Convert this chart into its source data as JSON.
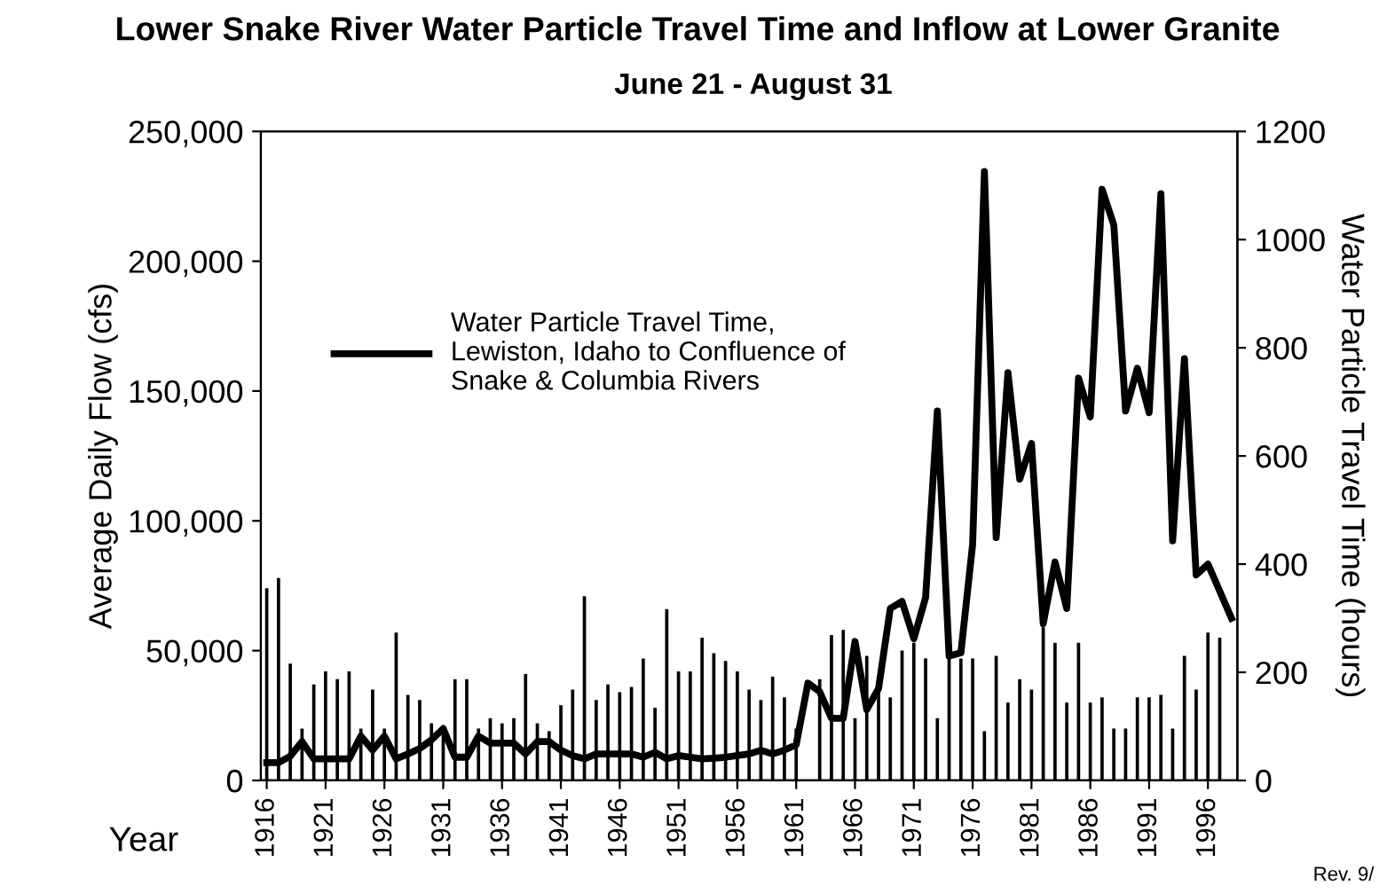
{
  "chart_data": {
    "type": "bar",
    "title": "Lower Snake River Water Particle Travel Time and Inflow at Lower Granite",
    "subtitle": "June 21 - August 31",
    "xlabel": "Year",
    "ylabel": "Average Daily Flow (cfs)",
    "y2label": "Water Particle Travel Time (hours)",
    "x": [
      1916,
      1917,
      1918,
      1919,
      1920,
      1921,
      1922,
      1923,
      1924,
      1925,
      1926,
      1927,
      1928,
      1929,
      1930,
      1931,
      1932,
      1933,
      1934,
      1935,
      1936,
      1937,
      1938,
      1939,
      1940,
      1941,
      1942,
      1943,
      1944,
      1945,
      1946,
      1947,
      1948,
      1949,
      1950,
      1951,
      1952,
      1953,
      1954,
      1955,
      1956,
      1957,
      1958,
      1959,
      1960,
      1961,
      1962,
      1963,
      1964,
      1965,
      1966,
      1967,
      1968,
      1969,
      1970,
      1971,
      1972,
      1973,
      1974,
      1975,
      1976,
      1977,
      1978,
      1979,
      1980,
      1981,
      1982,
      1983,
      1984,
      1985,
      1986,
      1987,
      1988,
      1989,
      1990,
      1991,
      1992,
      1993,
      1994,
      1995,
      1996,
      1997,
      1998
    ],
    "series": [
      {
        "color": "#000000",
        "values": [
          74000,
          78000,
          45000,
          20000,
          37000,
          42000,
          39000,
          42000,
          20000,
          35000,
          20000,
          57000,
          33000,
          31000,
          22000,
          20000,
          39000,
          39000,
          20000,
          24000,
          22000,
          24000,
          41000,
          22000,
          19000,
          29000,
          35000,
          71000,
          31000,
          37000,
          34000,
          36000,
          47000,
          28000,
          66000,
          42000,
          42000,
          55000,
          49000,
          46000,
          42000,
          35000,
          31000,
          40000,
          32000,
          20000,
          null,
          39000,
          56000,
          58000,
          24000,
          48000,
          35000,
          32000,
          50000,
          53000,
          47000,
          24000,
          47000,
          47000,
          47000,
          19000,
          48000,
          30000,
          39000,
          35000,
          59000,
          53000,
          30000,
          53000,
          30000,
          32000,
          20000,
          20000,
          32000,
          32000,
          33000,
          20000,
          48000,
          35000,
          57000,
          55000,
          null
        ]
      },
      {
        "type": "line",
        "axis": "y2",
        "name": "Water Particle Travel Time,\nLewiston, Idaho to Confluence of\nSnake & Columbia Rivers",
        "color": "#000000",
        "values": [
          33,
          33,
          45,
          72,
          40,
          40,
          40,
          40,
          82,
          56,
          82,
          40,
          49,
          59,
          75,
          96,
          43,
          43,
          82,
          69,
          69,
          69,
          49,
          72,
          72,
          56,
          46,
          40,
          49,
          49,
          49,
          49,
          43,
          52,
          40,
          46,
          43,
          40,
          41,
          43,
          46,
          49,
          56,
          49,
          56,
          66,
          180,
          164,
          115,
          115,
          257,
          131,
          170,
          318,
          331,
          262,
          338,
          683,
          230,
          236,
          437,
          1126,
          449,
          754,
          557,
          623,
          290,
          404,
          318,
          744,
          672,
          1093,
          1027,
          683,
          762,
          680,
          1085,
          443,
          780,
          380,
          400,
          350,
          300
        ]
      }
    ],
    "xlim": [
      1915.5,
      1998.5
    ],
    "xticks": [
      1916,
      1921,
      1926,
      1931,
      1936,
      1941,
      1946,
      1951,
      1956,
      1961,
      1966,
      1971,
      1976,
      1981,
      1986,
      1991,
      1996
    ],
    "ylim": [
      0,
      250000
    ],
    "yticks": [
      0,
      {
        "value": 50000,
        "label": "50,000"
      },
      {
        "value": 100000,
        "label": "100,000"
      },
      {
        "value": 150000,
        "label": "150,000"
      },
      {
        "value": 200000,
        "label": "200,000"
      },
      {
        "value": 250000,
        "label": "250,000"
      }
    ],
    "y2lim": [
      0,
      1200
    ],
    "y2ticks": [
      0,
      200,
      400,
      600,
      800,
      1000,
      1200
    ],
    "legend": "top left",
    "grid": false,
    "marker": "none",
    "line_style": "solid",
    "annotations": [
      "Rev. 9/"
    ]
  }
}
